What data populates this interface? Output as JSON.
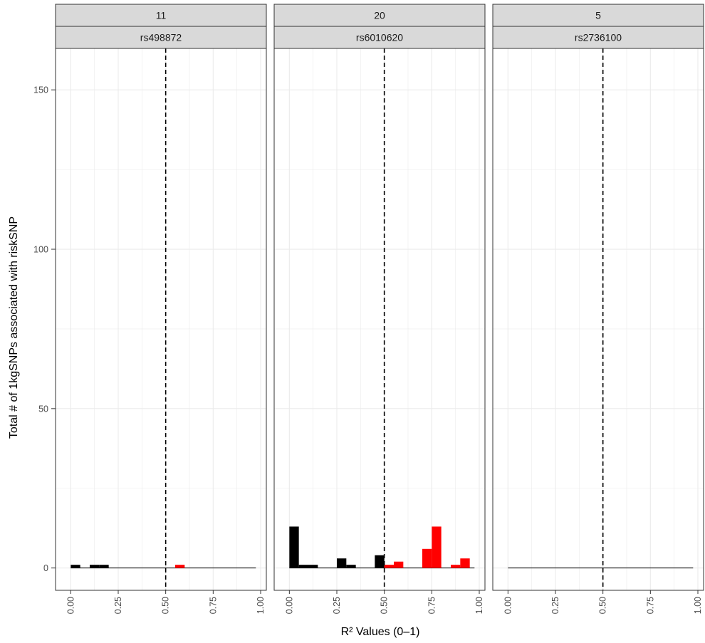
{
  "chart_data": {
    "type": "bar",
    "xlabel": "R² Values (0–1)",
    "ylabel": "Total # of 1kgSNPs associated with riskSNP",
    "xlim": [
      -0.08,
      1.03
    ],
    "ylim": [
      -7,
      163
    ],
    "x_ticks": [
      0,
      0.25,
      0.5,
      0.75,
      1
    ],
    "x_tick_labels": [
      "0.00",
      "0.25",
      "0.50",
      "0.75",
      "1.00"
    ],
    "y_ticks": [
      0,
      50,
      100,
      150
    ],
    "y_tick_labels": [
      "0",
      "50",
      "100",
      "150"
    ],
    "threshold_line": 0.5,
    "bin_width": 0.05,
    "colors": {
      "below_threshold": "#000000",
      "above_threshold": "#ff0000",
      "strip_fill": "#d9d9d9",
      "grid": "#ebebeb"
    },
    "grid": true,
    "legend": "none",
    "bins": [
      0.025,
      0.075,
      0.125,
      0.175,
      0.225,
      0.275,
      0.325,
      0.375,
      0.425,
      0.475,
      0.525,
      0.575,
      0.625,
      0.675,
      0.725,
      0.775,
      0.825,
      0.875,
      0.925,
      0.975
    ],
    "panels": [
      {
        "strip_top": "11",
        "strip_bottom": "rs498872",
        "series": [
          {
            "name": "",
            "color": "#000000",
            "values": [
              1,
              0,
              1,
              1,
              0,
              0,
              0,
              0,
              0,
              0,
              0,
              0,
              0,
              0,
              0,
              0,
              0,
              0,
              0,
              0
            ]
          },
          {
            "name": "",
            "color": "#ff0000",
            "values": [
              0,
              0,
              0,
              0,
              0,
              0,
              0,
              0,
              0,
              0,
              0,
              1,
              0,
              0,
              0,
              0,
              0,
              0,
              0,
              0
            ]
          }
        ]
      },
      {
        "strip_top": "20",
        "strip_bottom": "rs6010620",
        "series": [
          {
            "name": "",
            "color": "#000000",
            "values": [
              13,
              1,
              1,
              0,
              0,
              3,
              1,
              0,
              0,
              4,
              0,
              0,
              0,
              0,
              0,
              0,
              0,
              0,
              0,
              0
            ]
          },
          {
            "name": "",
            "color": "#ff0000",
            "values": [
              0,
              0,
              0,
              0,
              0,
              0,
              0,
              0,
              0,
              0,
              1,
              2,
              0,
              0,
              6,
              13,
              0,
              1,
              3,
              0
            ]
          }
        ]
      },
      {
        "strip_top": "5",
        "strip_bottom": "rs2736100",
        "series": [
          {
            "name": "",
            "color": "#000000",
            "values": [
              0,
              0,
              0,
              0,
              0,
              0,
              0,
              0,
              0,
              0,
              0,
              0,
              0,
              0,
              0,
              0,
              0,
              0,
              0,
              0
            ]
          },
          {
            "name": "",
            "color": "#ff0000",
            "values": [
              0,
              0,
              0,
              0,
              0,
              0,
              0,
              0,
              0,
              0,
              0,
              0,
              0,
              0,
              0,
              0,
              0,
              0,
              0,
              0
            ]
          }
        ]
      }
    ]
  }
}
